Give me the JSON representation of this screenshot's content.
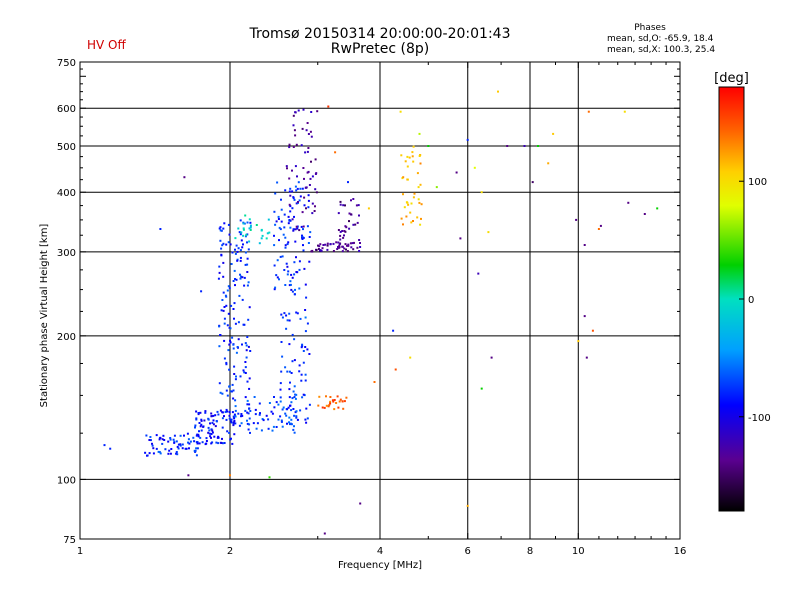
{
  "header": {
    "title_line1": "Tromsø 20150314 20:00:00-20:01:43",
    "title_line2": "RwPretec (8p)",
    "hv_status": "HV Off",
    "phase_title": "Phases",
    "phase_o": "mean, sd,O: -65.9, 18.4",
    "phase_x": "mean, sd,X: 100.3, 25.4"
  },
  "colorbar": {
    "unit": "[deg]",
    "min": -180,
    "max": 180,
    "ticks": [
      "100",
      "0",
      "-100"
    ]
  },
  "chart_data": {
    "type": "scatter",
    "xlabel": "Frequency [MHz]",
    "ylabel": "Stationary phase Virtual Height [km]",
    "xscale": "log",
    "yscale": "log",
    "xlim": [
      1,
      16
    ],
    "ylim": [
      75,
      750
    ],
    "xticks": [
      "1",
      "2",
      "4",
      "6",
      "8",
      "10",
      "16"
    ],
    "yticks": [
      "75",
      "100",
      "200",
      "300",
      "400",
      "500",
      "600",
      "750"
    ],
    "grid_x": [
      2,
      4,
      6,
      8,
      10
    ],
    "grid_y": [
      100,
      200,
      300,
      400,
      500,
      600
    ],
    "color_variable": "Phase [deg]",
    "clusters": [
      {
        "x": [
          1.35,
          1.75
        ],
        "y": [
          112,
          125
        ],
        "phase": -80,
        "count": 70
      },
      {
        "x": [
          1.7,
          2.05
        ],
        "y": [
          118,
          140
        ],
        "phase": -85,
        "count": 90
      },
      {
        "x": [
          2.05,
          2.75
        ],
        "y": [
          125,
          150
        ],
        "phase": -75,
        "count": 70
      },
      {
        "x": [
          1.9,
          2.2
        ],
        "y": [
          130,
          350
        ],
        "phase": -80,
        "count": 170
      },
      {
        "x": [
          2.5,
          2.9
        ],
        "y": [
          130,
          230
        ],
        "phase": -75,
        "count": 70
      },
      {
        "x": [
          2.45,
          2.9
        ],
        "y": [
          240,
          420
        ],
        "phase": -80,
        "count": 110
      },
      {
        "x": [
          2.6,
          3.0
        ],
        "y": [
          330,
          600
        ],
        "phase": -130,
        "count": 60
      },
      {
        "x": [
          2.9,
          3.55
        ],
        "y": [
          300,
          315
        ],
        "phase": -135,
        "count": 40
      },
      {
        "x": [
          3.3,
          3.65
        ],
        "y": [
          300,
          390
        ],
        "phase": -135,
        "count": 40
      },
      {
        "x": [
          3.0,
          3.45
        ],
        "y": [
          140,
          150
        ],
        "phase": 145,
        "count": 25
      },
      {
        "x": [
          4.4,
          4.85
        ],
        "y": [
          340,
          500
        ],
        "phase": 115,
        "count": 40
      },
      {
        "x": [
          2.05,
          2.4
        ],
        "y": [
          310,
          360
        ],
        "phase": -10,
        "count": 25
      }
    ],
    "scattered_points": [
      {
        "x": 1.15,
        "y": 116,
        "phase": -80
      },
      {
        "x": 1.12,
        "y": 118,
        "phase": -80
      },
      {
        "x": 1.45,
        "y": 335,
        "phase": -80
      },
      {
        "x": 1.62,
        "y": 430,
        "phase": -140
      },
      {
        "x": 1.65,
        "y": 102,
        "phase": -140
      },
      {
        "x": 1.75,
        "y": 248,
        "phase": -80
      },
      {
        "x": 2.4,
        "y": 101,
        "phase": 40
      },
      {
        "x": 2.0,
        "y": 102,
        "phase": 135
      },
      {
        "x": 3.1,
        "y": 77,
        "phase": -140
      },
      {
        "x": 3.65,
        "y": 89,
        "phase": -140
      },
      {
        "x": 3.15,
        "y": 605,
        "phase": 160
      },
      {
        "x": 3.25,
        "y": 485,
        "phase": 140
      },
      {
        "x": 3.45,
        "y": 420,
        "phase": -80
      },
      {
        "x": 3.9,
        "y": 160,
        "phase": 140
      },
      {
        "x": 3.8,
        "y": 370,
        "phase": 110
      },
      {
        "x": 4.4,
        "y": 590,
        "phase": 100
      },
      {
        "x": 4.25,
        "y": 205,
        "phase": -80
      },
      {
        "x": 4.3,
        "y": 170,
        "phase": 150
      },
      {
        "x": 4.6,
        "y": 180,
        "phase": 100
      },
      {
        "x": 4.8,
        "y": 530,
        "phase": 70
      },
      {
        "x": 5.0,
        "y": 500,
        "phase": 30
      },
      {
        "x": 5.2,
        "y": 410,
        "phase": 60
      },
      {
        "x": 5.7,
        "y": 440,
        "phase": -140
      },
      {
        "x": 5.8,
        "y": 320,
        "phase": -140
      },
      {
        "x": 6.0,
        "y": 515,
        "phase": -80
      },
      {
        "x": 6.0,
        "y": 88,
        "phase": 120
      },
      {
        "x": 6.2,
        "y": 450,
        "phase": 80
      },
      {
        "x": 6.3,
        "y": 270,
        "phase": -120
      },
      {
        "x": 6.4,
        "y": 400,
        "phase": 100
      },
      {
        "x": 6.4,
        "y": 155,
        "phase": 30
      },
      {
        "x": 6.6,
        "y": 330,
        "phase": 100
      },
      {
        "x": 6.7,
        "y": 180,
        "phase": -140
      },
      {
        "x": 6.9,
        "y": 650,
        "phase": 110
      },
      {
        "x": 7.2,
        "y": 500,
        "phase": -140
      },
      {
        "x": 7.8,
        "y": 500,
        "phase": -120
      },
      {
        "x": 8.1,
        "y": 420,
        "phase": -150
      },
      {
        "x": 8.3,
        "y": 500,
        "phase": 30
      },
      {
        "x": 8.7,
        "y": 460,
        "phase": 120
      },
      {
        "x": 8.9,
        "y": 530,
        "phase": 110
      },
      {
        "x": 9.9,
        "y": 350,
        "phase": -140
      },
      {
        "x": 10.0,
        "y": 195,
        "phase": 110
      },
      {
        "x": 10.3,
        "y": 310,
        "phase": -140
      },
      {
        "x": 10.3,
        "y": 220,
        "phase": -140
      },
      {
        "x": 10.4,
        "y": 180,
        "phase": -140
      },
      {
        "x": 10.5,
        "y": 590,
        "phase": 140
      },
      {
        "x": 10.7,
        "y": 205,
        "phase": 150
      },
      {
        "x": 11.0,
        "y": 335,
        "phase": 140
      },
      {
        "x": 11.1,
        "y": 340,
        "phase": -140
      },
      {
        "x": 12.4,
        "y": 590,
        "phase": 100
      },
      {
        "x": 12.6,
        "y": 380,
        "phase": -140
      },
      {
        "x": 13.6,
        "y": 360,
        "phase": -140
      },
      {
        "x": 14.4,
        "y": 370,
        "phase": 30
      }
    ]
  }
}
